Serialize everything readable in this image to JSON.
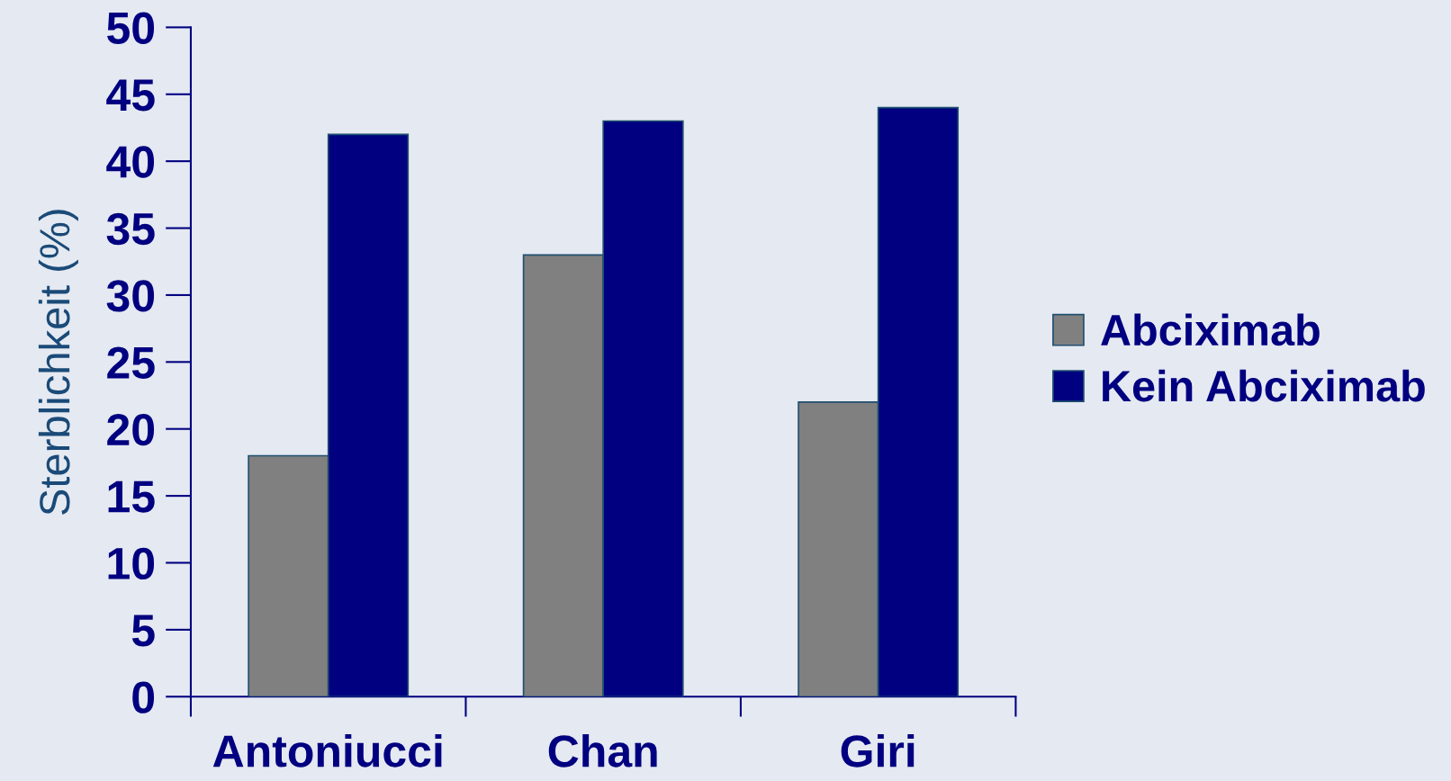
{
  "chart_data": {
    "type": "bar",
    "ylabel": "Sterblichkeit (%)",
    "categories": [
      "Antoniucci",
      "Chan",
      "Giri"
    ],
    "series": [
      {
        "name": "Abciximab",
        "color": "#808080",
        "values": [
          18,
          33,
          22
        ]
      },
      {
        "name": "Kein Abciximab",
        "color": "#000080",
        "values": [
          42,
          43,
          44
        ]
      }
    ],
    "ylim": [
      0,
      50
    ],
    "yticks": [
      0,
      5,
      10,
      15,
      20,
      25,
      30,
      35,
      40,
      45,
      50
    ],
    "grid": false,
    "legend": "right"
  }
}
